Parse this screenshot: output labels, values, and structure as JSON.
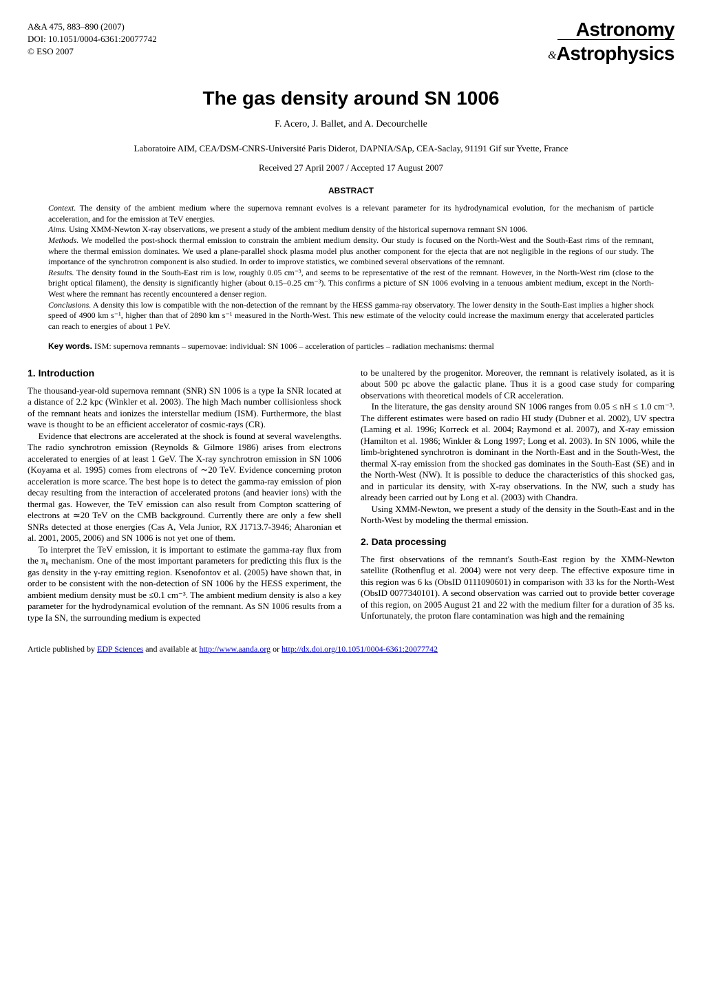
{
  "journal": {
    "ref_line": "A&A 475, 883–890 (2007)",
    "doi_line": "DOI: 10.1051/0004-6361:20077742",
    "copyright_line": "© ESO 2007",
    "logo_top": "Astronomy",
    "logo_amp": "&",
    "logo_bottom": "Astrophysics"
  },
  "title": "The gas density around SN 1006",
  "authors": "F. Acero, J. Ballet, and A. Decourchelle",
  "affiliation": "Laboratoire AIM, CEA/DSM-CNRS-Université Paris Diderot, DAPNIA/SAp, CEA-Saclay, 91191 Gif sur Yvette, France",
  "dates": "Received 27 April 2007 / Accepted 17 August 2007",
  "abstract_heading": "ABSTRACT",
  "abstract": {
    "context_label": "Context.",
    "context_text": " The density of the ambient medium where the supernova remnant evolves is a relevant parameter for its hydrodynamical evolution, for the mechanism of particle acceleration, and for the emission at TeV energies.",
    "aims_label": "Aims.",
    "aims_text": " Using XMM-Newton X-ray observations, we present a study of the ambient medium density of the historical supernova remnant SN 1006.",
    "methods_label": "Methods.",
    "methods_text": " We modelled the post-shock thermal emission to constrain the ambient medium density. Our study is focused on the North-West and the South-East rims of the remnant, where the thermal emission dominates. We used a plane-parallel shock plasma model plus another component for the ejecta that are not negligible in the regions of our study. The importance of the synchrotron component is also studied. In order to improve statistics, we combined several observations of the remnant.",
    "results_label": "Results.",
    "results_text": " The density found in the South-East rim is low, roughly 0.05 cm⁻³, and seems to be representative of the rest of the remnant. However, in the North-West rim (close to the bright optical filament), the density is significantly higher (about 0.15–0.25 cm⁻³). This confirms a picture of SN 1006 evolving in a tenuous ambient medium, except in the North-West where the remnant has recently encountered a denser region.",
    "conclusions_label": "Conclusions.",
    "conclusions_text": " A density this low is compatible with the non-detection of the remnant by the HESS gamma-ray observatory. The lower density in the South-East implies a higher shock speed of 4900 km s⁻¹, higher than that of 2890 km s⁻¹ measured in the North-West. This new estimate of the velocity could increase the maximum energy that accelerated particles can reach to energies of about 1 PeV."
  },
  "keywords_label": "Key words.",
  "keywords_text": "  ISM: supernova remnants – supernovae: individual: SN 1006 – acceleration of particles – radiation mechanisms: thermal",
  "sections": {
    "intro_heading": "1. Introduction",
    "intro_p1": "The thousand-year-old supernova remnant (SNR) SN 1006 is a type Ia SNR located at a distance of 2.2 kpc (Winkler et al. 2003). The high Mach number collisionless shock of the remnant heats and ionizes the interstellar medium (ISM). Furthermore, the blast wave is thought to be an efficient accelerator of cosmic-rays (CR).",
    "intro_p2": "Evidence that electrons are accelerated at the shock is found at several wavelengths. The radio synchrotron emission (Reynolds & Gilmore 1986) arises from electrons accelerated to energies of at least 1 GeV. The X-ray synchrotron emission in SN 1006 (Koyama et al. 1995) comes from electrons of ∼20 TeV. Evidence concerning proton acceleration is more scarce. The best hope is to detect the gamma-ray emission of pion decay resulting from the interaction of accelerated protons (and heavier ions) with the thermal gas. However, the TeV emission can also result from Compton scattering of electrons at ≃20 TeV on the CMB background. Currently there are only a few shell SNRs detected at those energies (Cas A, Vela Junior, RX J1713.7-3946; Aharonian et al. 2001, 2005, 2006) and SN 1006 is not yet one of them.",
    "intro_p3": "To interpret the TeV emission, it is important to estimate the gamma-ray flux from the π₀ mechanism. One of the most important parameters for predicting this flux is the gas density in the γ-ray emitting region. Ksenofontov et al. (2005) have shown that, in order to be consistent with the non-detection of SN 1006 by the HESS experiment, the ambient medium density must be ≤0.1 cm⁻³. The ambient medium density is also a key parameter for the hydrodynamical evolution of the remnant. As SN 1006 results from a type Ia SN, the surrounding medium is expected",
    "intro_p4_right": "to be unaltered by the progenitor. Moreover, the remnant is relatively isolated, as it is about 500 pc above the galactic plane. Thus it is a good case study for comparing observations with theoretical models of CR acceleration.",
    "intro_p5_right": "In the literature, the gas density around SN 1006 ranges from 0.05 ≤ nH ≤ 1.0 cm⁻³. The different estimates were based on radio HI study (Dubner et al. 2002), UV spectra (Laming et al. 1996; Korreck et al. 2004; Raymond et al. 2007), and X-ray emission (Hamilton et al. 1986; Winkler & Long 1997; Long et al. 2003). In SN 1006, while the limb-brightened synchrotron is dominant in the North-East and in the South-West, the thermal X-ray emission from the shocked gas dominates in the South-East (SE) and in the North-West (NW). It is possible to deduce the characteristics of this shocked gas, and in particular its density, with X-ray observations. In the NW, such a study has already been carried out by Long et al. (2003) with Chandra.",
    "intro_p6_right": "Using XMM-Newton, we present a study of the density in the South-East and in the North-West by modeling the thermal emission.",
    "data_heading": "2. Data processing",
    "data_p1": "The first observations of the remnant's South-East region by the XMM-Newton satellite (Rothenflug et al. 2004) were not very deep. The effective exposure time in this region was 6 ks (ObsID 0111090601) in comparison with 33 ks for the North-West (ObsID 0077340101). A second observation was carried out to provide better coverage of this region, on 2005 August 21 and 22 with the medium filter for a duration of 35 ks. Unfortunately, the proton flare contamination was high and the remaining"
  },
  "footer": {
    "prefix": "Article published by ",
    "edp": "EDP Sciences",
    "mid": " and available at ",
    "url1": "http://www.aanda.org",
    "or": " or ",
    "url2": "http://dx.doi.org/10.1051/0004-6361:20077742"
  }
}
